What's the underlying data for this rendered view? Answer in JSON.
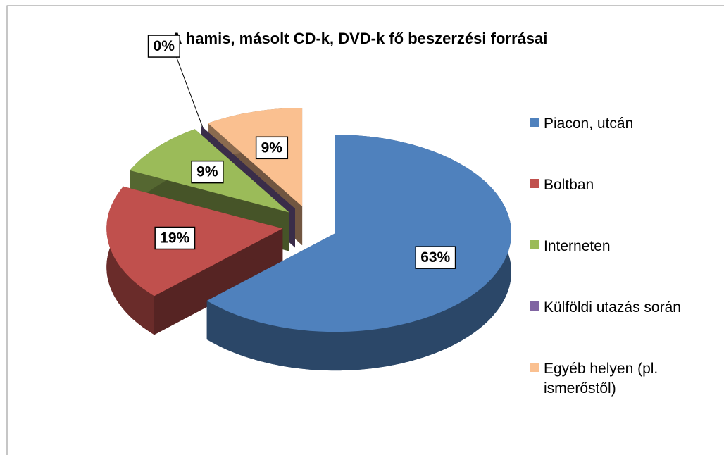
{
  "chart_data": {
    "type": "pie3d",
    "title": "A hamis, másolt CD-k, DVD-k fő beszerzési forrásai",
    "categories": [
      "Piacon, utcán",
      "Boltban",
      "Interneten",
      "Külföldi utazás során",
      "Egyéb helyen (pl. ismerőstől)"
    ],
    "values": [
      63,
      19,
      9,
      0,
      9
    ],
    "value_labels": [
      "63%",
      "19%",
      "9%",
      "0%",
      "9%"
    ],
    "colors": [
      "#4f81bd",
      "#c0504d",
      "#9bbb59",
      "#8064a2",
      "#fac090"
    ],
    "legend": "right"
  }
}
